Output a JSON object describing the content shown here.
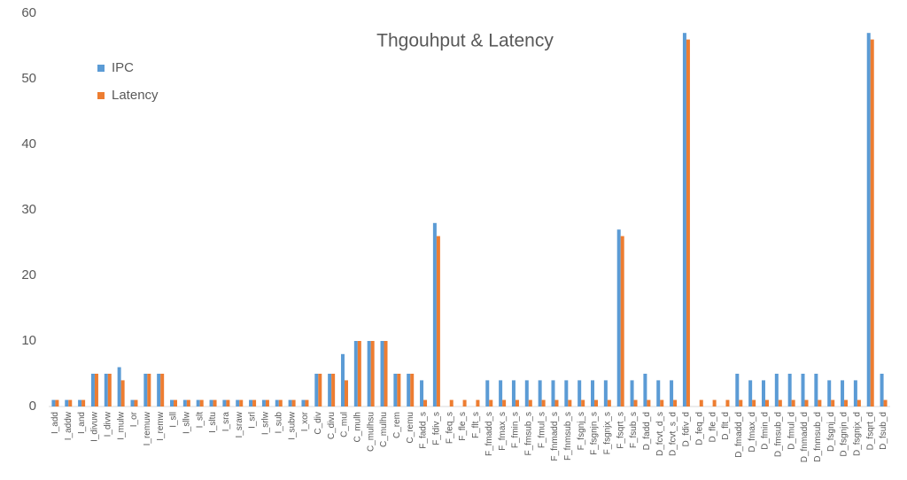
{
  "chart_data": {
    "type": "bar",
    "title": "Thgouhput & Latency",
    "categories": [
      "I_add",
      "I_addw",
      "I_and",
      "I_divuw",
      "I_divw",
      "I_mulw",
      "I_or",
      "I_remuw",
      "I_remw",
      "I_sll",
      "I_sllw",
      "I_slt",
      "I_sltu",
      "I_sra",
      "I_sraw",
      "I_srl",
      "I_srlw",
      "I_sub",
      "I_subw",
      "I_xor",
      "C_div",
      "C_divu",
      "C_mul",
      "C_mulh",
      "C_mulhsu",
      "C_mulhu",
      "C_rem",
      "C_remu",
      "F_fadd_s",
      "F_fdiv_s",
      "F_feq_s",
      "F_fle_s",
      "F_flt_s",
      "F_fmadd_s",
      "F_fmax_s",
      "F_fmin_s",
      "F_fmsub_s",
      "F_fmul_s",
      "F_fnmadd_s",
      "F_fnmsub_s",
      "F_fsgnj_s",
      "F_fsgnjn_s",
      "F_fsgnjx_s",
      "F_fsqrt_s",
      "F_fsub_s",
      "D_fadd_d",
      "D_fcvt_d_s",
      "D_fcvt_s_d",
      "D_fdiv_d",
      "D_feq_d",
      "D_fle_d",
      "D_flt_d",
      "D_fmadd_d",
      "D_fmax_d",
      "D_fmin_d",
      "D_fmsub_d",
      "D_fmul_d",
      "D_fnmadd_d",
      "D_fnmsub_d",
      "D_fsgnj_d",
      "D_fsgnjn_d",
      "D_fsgnjx_d",
      "D_fsqrt_d",
      "D_fsub_d"
    ],
    "series": [
      {
        "name": "IPC",
        "color": "#5b9bd5",
        "values": [
          1,
          1,
          1,
          5,
          5,
          6,
          1,
          5,
          5,
          1,
          1,
          1,
          1,
          1,
          1,
          1,
          1,
          1,
          1,
          1,
          5,
          5,
          8,
          10,
          10,
          10,
          5,
          5,
          4,
          28,
          0,
          0,
          0,
          4,
          4,
          4,
          4,
          4,
          4,
          4,
          4,
          4,
          4,
          27,
          4,
          5,
          4,
          4,
          57,
          0,
          0,
          0,
          5,
          4,
          4,
          5,
          5,
          5,
          5,
          4,
          4,
          4,
          57,
          5
        ]
      },
      {
        "name": "Latency",
        "color": "#ed7d31",
        "values": [
          1,
          1,
          1,
          5,
          5,
          4,
          1,
          5,
          5,
          1,
          1,
          1,
          1,
          1,
          1,
          1,
          1,
          1,
          1,
          1,
          5,
          5,
          4,
          10,
          10,
          10,
          5,
          5,
          1,
          26,
          1,
          1,
          1,
          1,
          1,
          1,
          1,
          1,
          1,
          1,
          1,
          1,
          1,
          26,
          1,
          1,
          1,
          1,
          56,
          1,
          1,
          1,
          1,
          1,
          1,
          1,
          1,
          1,
          1,
          1,
          1,
          1,
          56,
          1
        ]
      }
    ],
    "ylim": [
      0,
      60
    ],
    "yticks": [
      0,
      10,
      20,
      30,
      40,
      50,
      60
    ],
    "grid": false
  }
}
